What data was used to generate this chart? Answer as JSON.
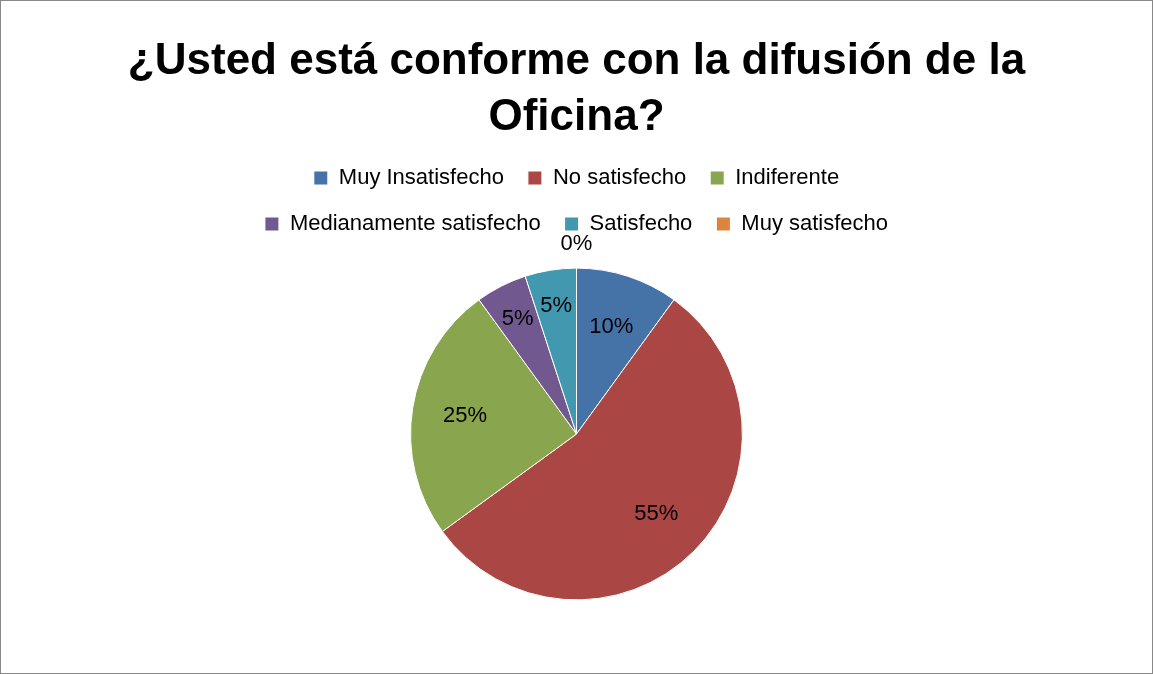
{
  "chart_data": {
    "type": "pie",
    "title": "¿Usted está conforme con la difusión de la Oficina?",
    "categories": [
      "Muy Insatisfecho",
      "No satisfecho",
      "Indiferente",
      "Medianamente satisfecho",
      "Satisfecho",
      "Muy satisfecho"
    ],
    "values": [
      10,
      55,
      25,
      5,
      5,
      0
    ],
    "colors": [
      "#4572a7",
      "#aa4643",
      "#89a54e",
      "#71588f",
      "#4198af",
      "#db843d"
    ],
    "value_labels": [
      "10%",
      "55%",
      "25%",
      "5%",
      "5%",
      "0%"
    ],
    "legend": "top"
  }
}
